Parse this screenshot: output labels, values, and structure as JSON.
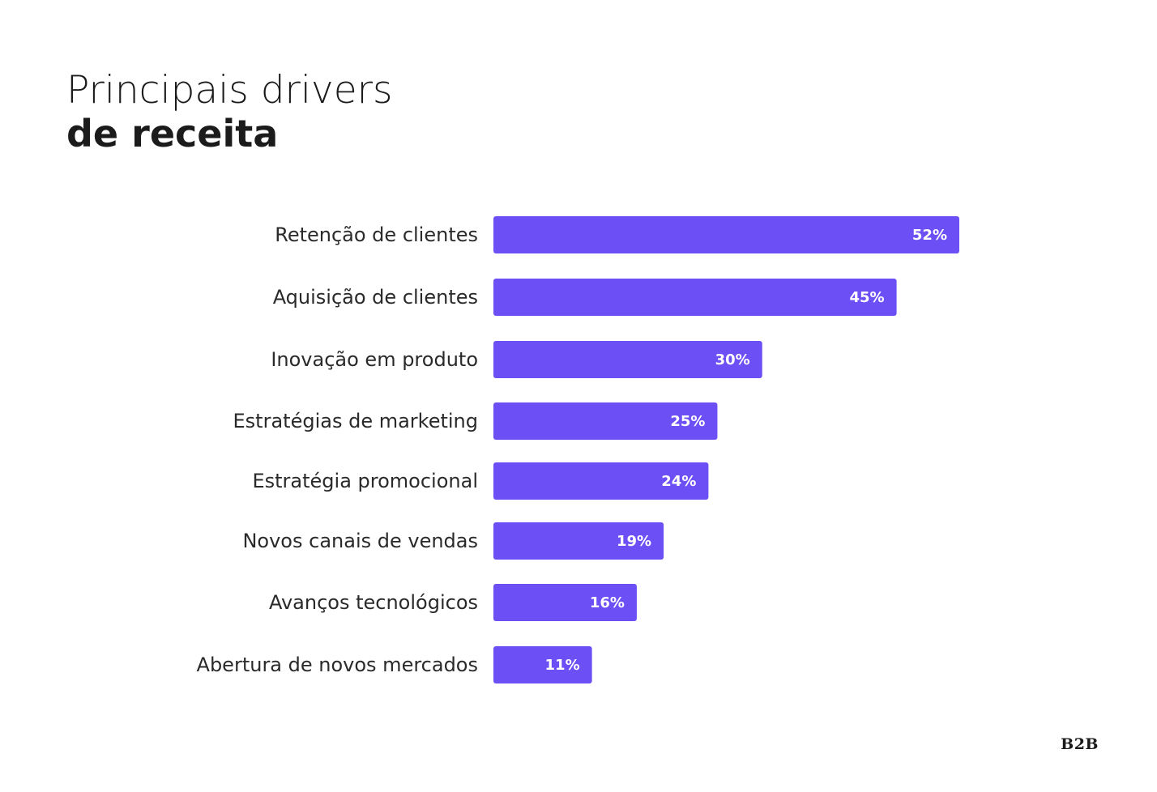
{
  "title": {
    "line1": "Principais drivers",
    "line2": "de receita"
  },
  "logo": "B2B",
  "colors": {
    "bar": "#6c4ff5",
    "value_text": "#ffffff",
    "label_text": "#2a2a2a",
    "title_text": "#1b1b1b"
  },
  "chart_data": {
    "type": "bar",
    "orientation": "horizontal",
    "title": "Principais drivers de receita",
    "categories": [
      "Retenção de clientes",
      "Aquisição de clientes",
      "Inovação em produto",
      "Estratégias de marketing",
      "Estratégia promocional",
      "Novos canais de vendas",
      "Avanços tecnológicos",
      "Abertura de novos mercados"
    ],
    "values": [
      52,
      45,
      30,
      25,
      24,
      19,
      16,
      11
    ],
    "value_labels": [
      "52%",
      "45%",
      "30%",
      "25%",
      "24%",
      "19%",
      "16%",
      "11%"
    ],
    "unit": "%",
    "xlim": [
      0,
      52
    ],
    "grid": false,
    "legend": "none"
  }
}
